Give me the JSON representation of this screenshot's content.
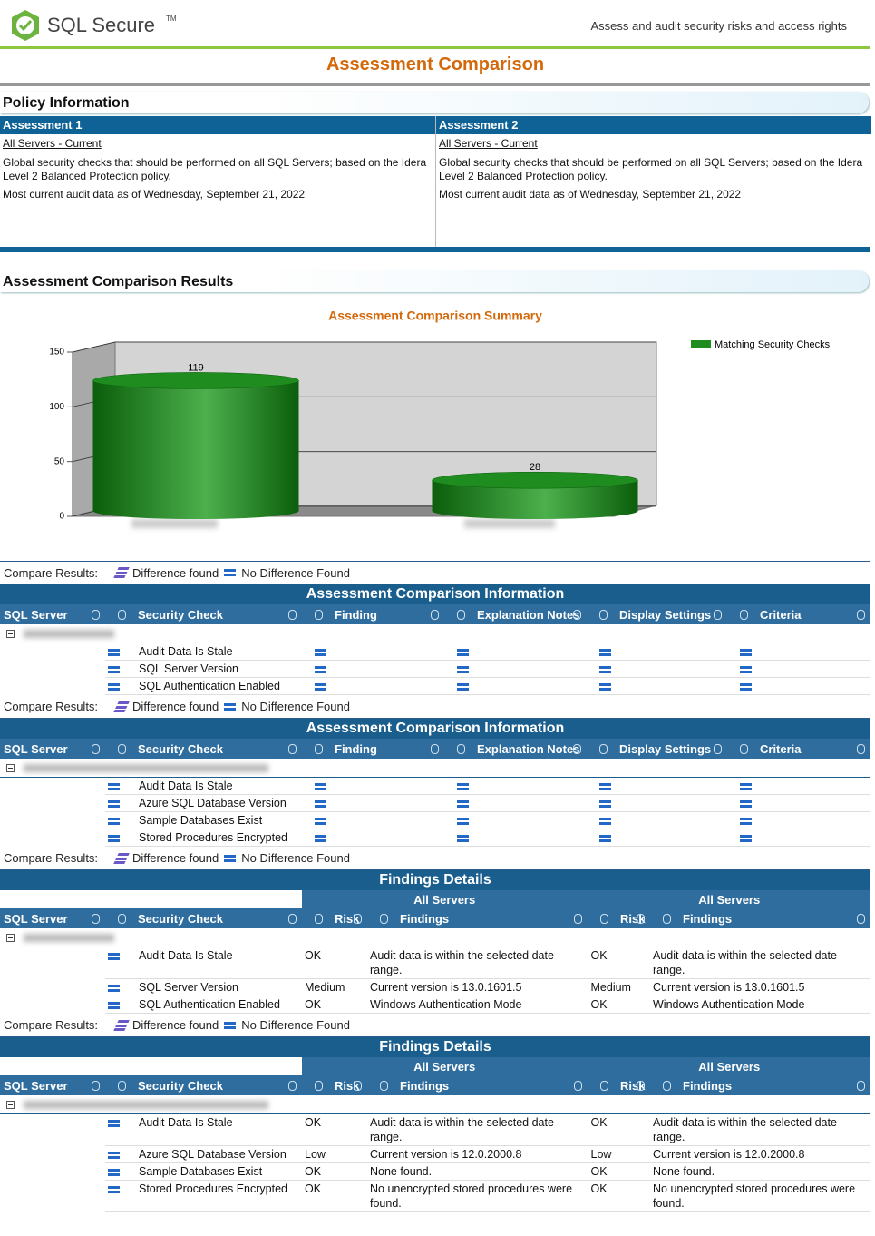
{
  "header": {
    "logo": "SQL Secure",
    "trademark": "TM",
    "tagline": "Assess and audit security risks and access rights"
  },
  "page_title": "Assessment Comparison",
  "policy": {
    "title": "Policy Information",
    "columns": [
      {
        "heading": "Assessment 1",
        "link": "All Servers - Current",
        "description": "Global security checks that should be performed on all SQL Servers; based on the Idera Level 2 Balanced Protection policy.",
        "audit_date": "Most current audit data as of Wednesday, September 21, 2022"
      },
      {
        "heading": "Assessment 2",
        "link": "All Servers - Current",
        "description": "Global security checks that should be performed on all SQL Servers; based on the Idera Level 2 Balanced Protection policy.",
        "audit_date": "Most current audit data as of Wednesday, September 21, 2022"
      }
    ]
  },
  "results_title": "Assessment Comparison Results",
  "chart_data": {
    "type": "bar",
    "title": "Assessment Comparison Summary",
    "categories": [
      null,
      null
    ],
    "series": [
      {
        "name": "Matching Security Checks",
        "color": "#1e8c1e",
        "values": [
          119,
          28
        ]
      }
    ],
    "ylim": [
      0,
      150
    ],
    "yticks": [
      0,
      50,
      100,
      150
    ],
    "grid": true,
    "legend": "top-right"
  },
  "compare_legend": {
    "label": "Compare Results:",
    "difference": "Difference found",
    "no_difference": "No Difference Found"
  },
  "sections": [
    {
      "title": "Assessment Comparison Information",
      "columns": [
        "SQL Server",
        "Security Check",
        "Finding",
        "Explanation Notes",
        "Display Settings",
        "Criteria"
      ],
      "rows": [
        "Audit Data Is Stale",
        "SQL Server Version",
        "SQL Authentication Enabled"
      ]
    },
    {
      "title": "Assessment Comparison Information",
      "columns": [
        "SQL Server",
        "Security Check",
        "Finding",
        "Explanation Notes",
        "Display Settings",
        "Criteria"
      ],
      "rows": [
        "Audit Data Is Stale",
        "Azure SQL Database Version",
        "Sample Databases Exist",
        "Stored Procedures Encrypted"
      ]
    },
    {
      "title": "Findings Details",
      "group_headers": [
        "All Servers",
        "All Servers"
      ],
      "columns": [
        "SQL Server",
        "Security Check",
        "Risk",
        "Findings",
        "Risk",
        "Findings"
      ],
      "rows": [
        [
          "Audit Data Is Stale",
          "OK",
          "Audit data is within the selected date range.",
          "OK",
          "Audit data is within the selected date range."
        ],
        [
          "SQL Server Version",
          "Medium",
          "Current version is 13.0.1601.5",
          "Medium",
          "Current version is 13.0.1601.5"
        ],
        [
          "SQL Authentication Enabled",
          "OK",
          "Windows Authentication Mode",
          "OK",
          "Windows Authentication Mode"
        ]
      ]
    },
    {
      "title": "Findings Details",
      "group_headers": [
        "All Servers",
        "All Servers"
      ],
      "columns": [
        "SQL Server",
        "Security Check",
        "Risk",
        "Findings",
        "Risk",
        "Findings"
      ],
      "rows": [
        [
          "Audit Data Is Stale",
          "OK",
          "Audit data is within the selected date range.",
          "OK",
          "Audit data is within the selected date range."
        ],
        [
          "Azure SQL Database Version",
          "Low",
          "Current version is 12.0.2000.8",
          "Low",
          "Current version is 12.0.2000.8"
        ],
        [
          "Sample Databases Exist",
          "OK",
          "None found.",
          "OK",
          "None found."
        ],
        [
          "Stored Procedures Encrypted",
          "OK",
          "No unencrypted stored procedures were found.",
          "OK",
          "No unencrypted stored procedures were found."
        ]
      ]
    }
  ]
}
